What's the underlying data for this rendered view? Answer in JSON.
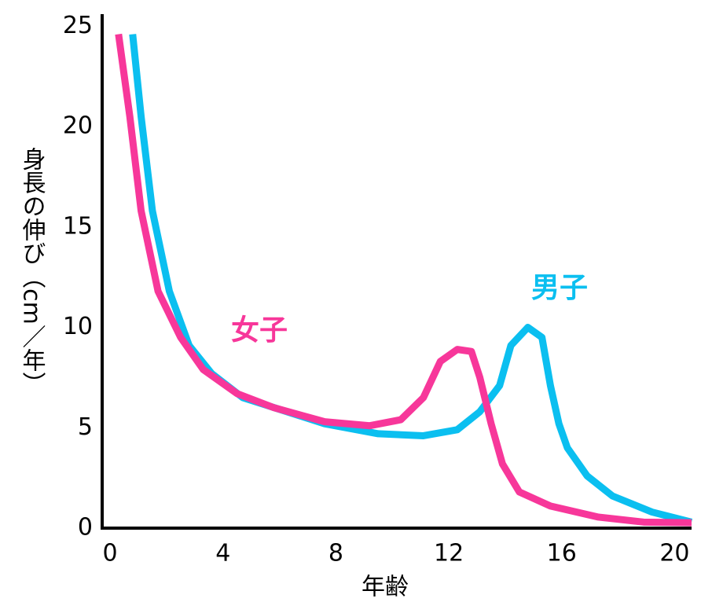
{
  "chart_data": {
    "type": "line",
    "x_label": "年齢",
    "y_label": "身長の伸び（cm／年）",
    "xlim": [
      -0.28,
      20.6
    ],
    "ylim": [
      0,
      25.6
    ],
    "xticks": [
      0,
      4,
      8,
      12,
      16,
      20
    ],
    "yticks": [
      0,
      5,
      10,
      15,
      20,
      25
    ],
    "grid": false,
    "series": [
      {
        "name": "女子",
        "color": "#f7379a",
        "x": [
          0.3,
          0.7,
          1.1,
          1.7,
          2.5,
          3.3,
          4.5,
          5.8,
          7.6,
          9.2,
          10.3,
          11.1,
          11.7,
          12.3,
          12.8,
          13.1,
          13.5,
          13.9,
          14.5,
          15.6,
          17.3,
          18.9,
          20.6
        ],
        "values": [
          24.6,
          20.5,
          15.8,
          11.8,
          9.5,
          7.9,
          6.7,
          6.0,
          5.3,
          5.1,
          5.4,
          6.5,
          8.3,
          8.9,
          8.8,
          7.5,
          5.2,
          3.2,
          1.8,
          1.1,
          0.55,
          0.3,
          0.27
        ]
      },
      {
        "name": "男子",
        "color": "#0bbff0",
        "x": [
          0.8,
          1.1,
          1.5,
          2.1,
          2.8,
          3.6,
          4.7,
          7.6,
          9.5,
          11.1,
          12.3,
          13.1,
          13.8,
          14.2,
          14.8,
          15.3,
          15.6,
          15.9,
          16.2,
          16.9,
          17.8,
          19.2,
          20.6
        ],
        "values": [
          24.6,
          20.5,
          15.8,
          11.8,
          9.1,
          7.7,
          6.5,
          5.2,
          4.7,
          4.6,
          4.9,
          5.8,
          7.1,
          9.1,
          10.0,
          9.5,
          7.1,
          5.2,
          4.0,
          2.6,
          1.6,
          0.8,
          0.3
        ]
      }
    ]
  }
}
